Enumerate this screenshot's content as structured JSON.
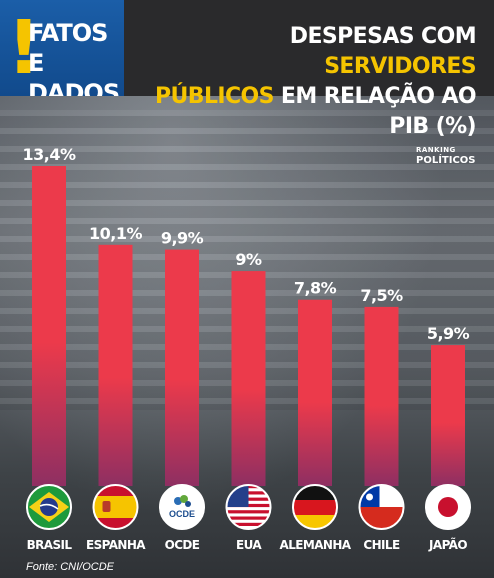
{
  "brand": {
    "mark": "!",
    "text": "FATOS E\nDADOS"
  },
  "title": {
    "part1": "DESPESAS COM ",
    "highlight1": "SERVIDORES",
    "highlight2": "PÚBLICOS",
    "part2": " EM RELAÇÃO AO PIB (%)"
  },
  "logo": {
    "line1": "RANKING",
    "line2": "POLÍTICOS"
  },
  "source": "Fonte: CNI/OCDE",
  "colors": {
    "bar_top": "#ec3a4b",
    "bar_bottom": "#8e2f62",
    "accent": "#f5c400",
    "brand": "#1b5ea8"
  },
  "chart_data": {
    "type": "bar",
    "categories": [
      "BRASIL",
      "ESPANHA",
      "OCDE",
      "EUA",
      "ALEMANHA",
      "CHILE",
      "JAPÃO"
    ],
    "values": [
      13.4,
      10.1,
      9.9,
      9.0,
      7.8,
      7.5,
      5.9
    ],
    "value_labels": [
      "13,4%",
      "10,1%",
      "9,9%",
      "9%",
      "7,8%",
      "7,5%",
      "5,9%"
    ],
    "flags": [
      "brazil-flag",
      "spain-flag",
      "oecd-logo",
      "usa-flag",
      "germany-flag",
      "chile-flag",
      "japan-flag"
    ],
    "ylim": [
      0,
      13.4
    ],
    "grid": false,
    "legend": "none"
  }
}
